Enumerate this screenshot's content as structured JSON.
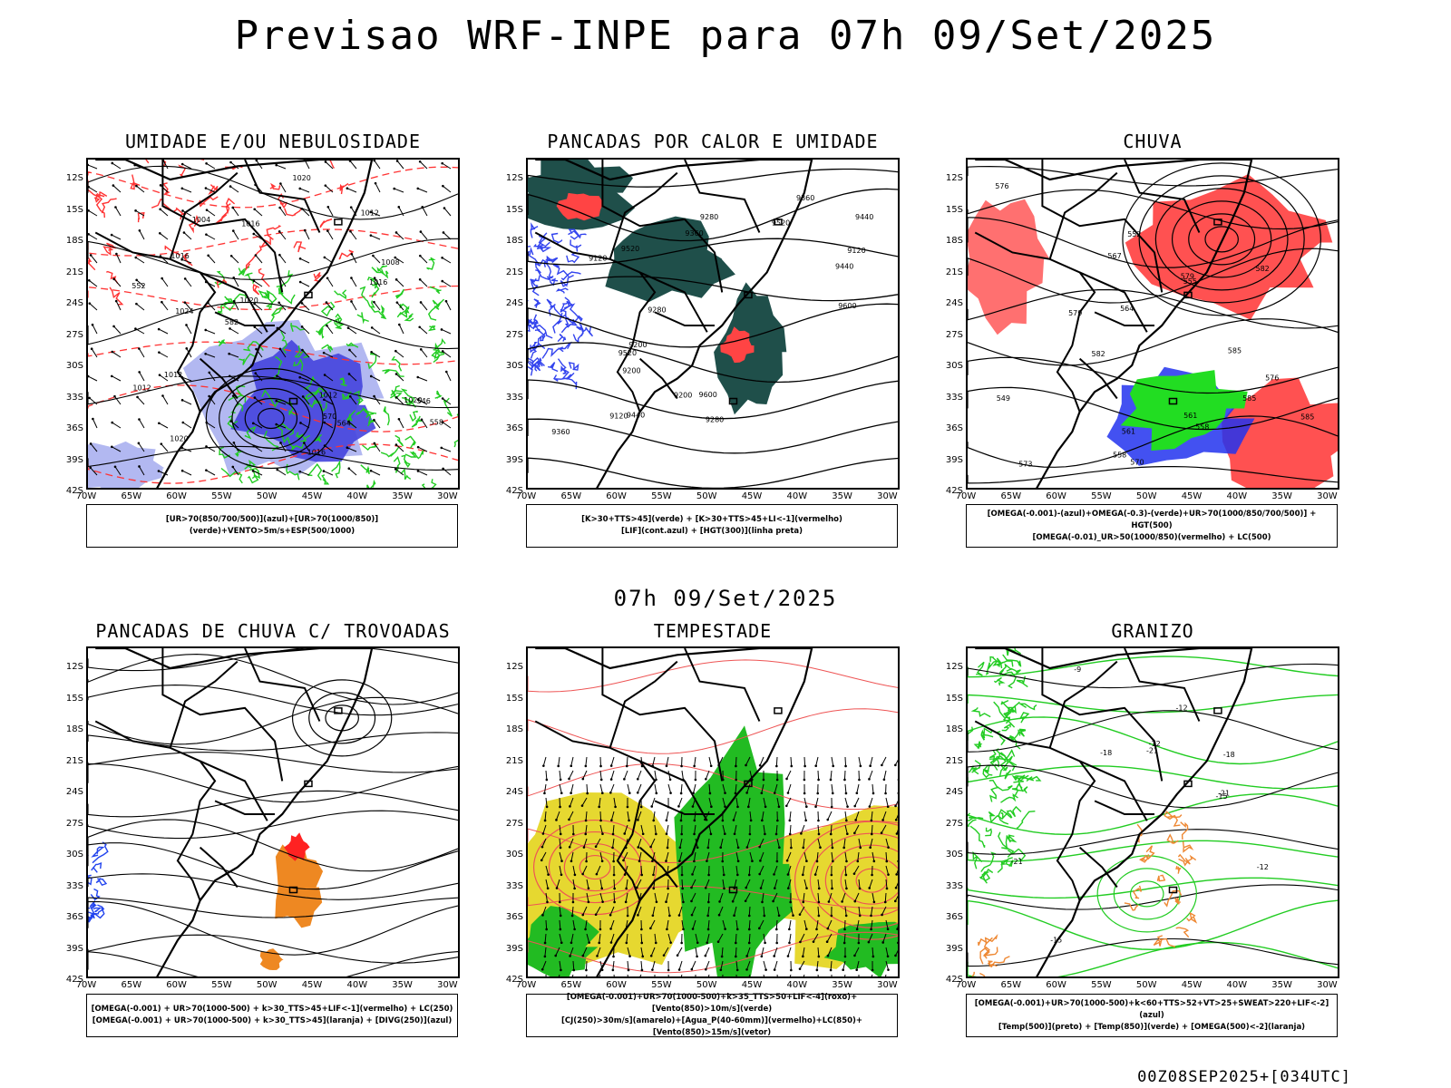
{
  "header": {
    "title": "Previsao WRF-INPE  para 07h 09/Set/2025",
    "mid_title": "07h 09/Set/2025",
    "footer_code": "00Z08SEP2025+[034UTC]"
  },
  "axes": {
    "lat_labels": [
      "12S",
      "15S",
      "18S",
      "21S",
      "24S",
      "27S",
      "30S",
      "33S",
      "36S",
      "39S",
      "42S"
    ],
    "lon_labels": [
      "70W",
      "65W",
      "60W",
      "55W",
      "50W",
      "45W",
      "40W",
      "35W",
      "30W"
    ]
  },
  "panels": [
    {
      "title": "UMIDADE E/OU NEBULOSIDADE",
      "legend": [
        "[UR>70(850/700/500)](azul)+[UR>70(1000/850)](verde)+VENTO>5m/s+ESP(500/1000)"
      ],
      "contour_labels": [
        "1020",
        "1012",
        "1012",
        "1016",
        "1016",
        "1020",
        "1020",
        "1020",
        "1024",
        "1012",
        "1008",
        "1004",
        "1016",
        "1012",
        "1016",
        "570",
        "564",
        "558",
        "552",
        "546",
        "582"
      ],
      "colors": {
        "fill_primary": "#4444dd",
        "fill_secondary": "#aab0f0",
        "line_primary": "#22cc22",
        "line_secondary": "#ff3333"
      }
    },
    {
      "title": "PANCADAS POR CALOR E UMIDADE",
      "legend": [
        "[K>30+TTS>45](verde) + [K>30+TTS>45+LI<-1](vermelho)",
        "[LIF](cont.azul) + [HGT(300)](linha preta)"
      ],
      "contour_labels": [
        "9600",
        "9520",
        "9520",
        "9440",
        "9440",
        "9360",
        "9360",
        "9280",
        "9280",
        "9200",
        "9200",
        "9120",
        "9120",
        "9600",
        "9520",
        "9440",
        "9360",
        "9280",
        "9200",
        "9120"
      ],
      "colors": {
        "fill_primary": "#1f4f4a",
        "fill_secondary": "#ff4444",
        "line_primary": "#3344ee",
        "line_secondary": "#000000"
      }
    },
    {
      "title": "CHUVA",
      "legend": [
        "[OMEGA(-0.001)-(azul)+OMEGA(-0.3)-(verde)+UR>70(1000/850/700/500)] + HGT(500)",
        "[OMEGA(-0.01)_UR>50(1000/850)(vermelho) + LC(500)"
      ],
      "contour_labels": [
        "585",
        "585",
        "582",
        "579",
        "576",
        "573",
        "570",
        "567",
        "564",
        "561",
        "558",
        "555",
        "552",
        "549",
        "576",
        "579",
        "582",
        "585",
        "558",
        "561"
      ],
      "colors": {
        "fill_primary": "#22dd22",
        "fill_secondary": "#ff3333",
        "line_primary": "#2233ee",
        "line_secondary": "#000000"
      }
    },
    {
      "title": "PANCADAS DE CHUVA C/ TROVOADAS",
      "legend": [
        "[OMEGA(-0.001) + UR>70(1000-500) + k>30_TTS>45+LIF<-1](vermelho) + LC(250)",
        "[OMEGA(-0.001) + UR>70(1000-500) + k>30_TTS>45](laranja) + [DIVG(250)](azul)"
      ],
      "contour_labels": [],
      "colors": {
        "fill_primary": "#ee8822",
        "fill_secondary": "#ff2222",
        "line_primary": "#2244ee",
        "line_secondary": "#000000"
      }
    },
    {
      "title": "TEMPESTADE",
      "legend": [
        "[OMEGA(-0.001)+UR>70(1000-500)+k>35_TTS>50+LIF<-4](roxo)+[Vento(850)>10m/s](verde)",
        "[CJ(250)>30m/s](amarelo)+[Agua_P(40-60mm)](vermelho)+LC(850)+[Vento(850)>15m/s](vetor)"
      ],
      "contour_labels": [],
      "colors": {
        "fill_primary": "#e6d830",
        "fill_secondary": "#22bb22",
        "line_primary": "#ee5555",
        "line_secondary": "#000000"
      }
    },
    {
      "title": "GRANIZO",
      "legend": [
        "[OMEGA(-0.001)+UR>70(1000-500)+k<60+TTS>52+VT>25+SWEAT>220+LIF<-2](azul)",
        "[Temp(500)](preto) + [Temp(850)](verde) + [OMEGA(500)<-2](laranja)"
      ],
      "contour_labels": [
        "-12",
        "-12",
        "-15",
        "-15",
        "-18",
        "-18",
        "-21",
        "-21",
        "-21",
        "-9",
        "-12"
      ],
      "colors": {
        "fill_primary": "#ee8833",
        "fill_secondary": "#22cc22",
        "line_primary": "#22cc22",
        "line_secondary": "#000000"
      }
    }
  ]
}
